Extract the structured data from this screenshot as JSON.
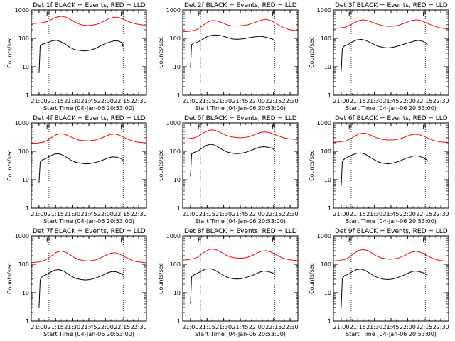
{
  "chart_data": {
    "type": "line",
    "ylabel": "Counts/sec",
    "xlabel": "Start Time (04-Jan-06 20:53:00)",
    "x_tick_labels": [
      "21:00",
      "21:15",
      "21:30",
      "21:45",
      "22:00",
      "22:15",
      "22:30"
    ],
    "x_ticks_min": [
      0,
      15,
      30,
      45,
      60,
      75,
      90
    ],
    "xlim_min": [
      -7,
      97
    ],
    "y_tick_labels": [
      "1",
      "10",
      "100",
      "1000"
    ],
    "y_ticks": [
      1,
      10,
      100,
      1000
    ],
    "ylim": [
      1,
      1000
    ],
    "log_y": true,
    "markers": {
      "label": "E",
      "x_min": [
        9,
        76
      ]
    },
    "colors": {
      "events": "#000000",
      "lld": "#ff0000"
    },
    "panels": [
      {
        "title": "Det 1f BLACK = Events, RED = LLD",
        "series": [
          {
            "key": "events",
            "x": [
              0,
              1,
              3,
              5,
              8,
              12,
              16,
              20,
              24,
              28,
              32,
              36,
              40,
              44,
              48,
              52,
              56,
              60,
              64,
              68,
              72,
              75,
              76
            ],
            "y": [
              6,
              55,
              62,
              65,
              72,
              82,
              85,
              75,
              62,
              48,
              40,
              38,
              36,
              37,
              40,
              46,
              56,
              66,
              74,
              82,
              80,
              70,
              50
            ]
          },
          {
            "key": "lld",
            "x": [
              -7,
              -2,
              4,
              8,
              12,
              16,
              20,
              24,
              28,
              32,
              36,
              40,
              44,
              48,
              52,
              56,
              60,
              64,
              68,
              72,
              76,
              80,
              84,
              88,
              92,
              97
            ],
            "y": [
              330,
              340,
              360,
              400,
              480,
              560,
              600,
              560,
              470,
              380,
              320,
              290,
              280,
              290,
              310,
              350,
              430,
              510,
              560,
              540,
              470,
              400,
              350,
              320,
              300,
              290
            ]
          }
        ]
      },
      {
        "title": "Det 2f BLACK = Events, RED = LLD",
        "series": [
          {
            "key": "events",
            "x": [
              0,
              1,
              3,
              6,
              10,
              14,
              18,
              22,
              26,
              30,
              34,
              38,
              42,
              46,
              50,
              54,
              58,
              62,
              66,
              70,
              74,
              76
            ],
            "y": [
              9,
              60,
              68,
              72,
              88,
              110,
              125,
              132,
              128,
              118,
              105,
              95,
              92,
              95,
              100,
              108,
              112,
              118,
              115,
              105,
              95,
              80
            ]
          },
          {
            "key": "lld",
            "x": [
              -7,
              -2,
              4,
              8,
              12,
              16,
              20,
              24,
              28,
              32,
              36,
              40,
              44,
              48,
              52,
              56,
              60,
              64,
              68,
              72,
              76,
              80,
              84,
              88,
              92,
              97
            ],
            "y": [
              170,
              175,
              190,
              230,
              300,
              380,
              430,
              410,
              360,
              310,
              280,
              270,
              275,
              285,
              300,
              340,
              390,
              440,
              470,
              430,
              360,
              290,
              240,
              210,
              195,
              185
            ]
          }
        ]
      },
      {
        "title": "Det 3f BLACK = Events, RED = LLD",
        "series": [
          {
            "key": "events",
            "x": [
              0,
              1,
              3,
              6,
              10,
              14,
              18,
              22,
              26,
              30,
              34,
              38,
              42,
              46,
              50,
              54,
              58,
              62,
              66,
              70,
              74,
              78
            ],
            "y": [
              7,
              45,
              55,
              60,
              75,
              88,
              92,
              85,
              72,
              60,
              52,
              48,
              46,
              48,
              52,
              58,
              65,
              72,
              80,
              85,
              78,
              60
            ]
          },
          {
            "key": "lld",
            "x": [
              -7,
              -2,
              4,
              8,
              12,
              16,
              20,
              24,
              28,
              32,
              36,
              40,
              44,
              48,
              52,
              56,
              60,
              64,
              68,
              72,
              76,
              80,
              84,
              88,
              92,
              97
            ],
            "y": [
              220,
              230,
              250,
              290,
              360,
              420,
              450,
              420,
              370,
              320,
              290,
              270,
              265,
              270,
              290,
              330,
              380,
              430,
              450,
              420,
              360,
              310,
              270,
              240,
              225,
              215
            ]
          }
        ]
      },
      {
        "title": "Det 4f BLACK = Events, RED = LLD",
        "series": [
          {
            "key": "events",
            "x": [
              0,
              1,
              3,
              6,
              10,
              14,
              18,
              22,
              26,
              30,
              34,
              38,
              42,
              46,
              50,
              54,
              58,
              62,
              66,
              70,
              74,
              76
            ],
            "y": [
              8,
              42,
              50,
              55,
              68,
              80,
              82,
              72,
              58,
              46,
              40,
              38,
              36,
              37,
              40,
              44,
              50,
              58,
              64,
              62,
              56,
              48
            ]
          },
          {
            "key": "lld",
            "x": [
              -7,
              -2,
              4,
              8,
              12,
              16,
              20,
              24,
              28,
              32,
              36,
              40,
              44,
              48,
              52,
              56,
              60,
              64,
              68,
              72,
              76,
              80,
              84,
              88,
              92,
              97
            ],
            "y": [
              190,
              195,
              210,
              250,
              320,
              390,
              420,
              390,
              330,
              280,
              250,
              240,
              235,
              240,
              255,
              290,
              340,
              390,
              410,
              380,
              320,
              270,
              235,
              215,
              205,
              195
            ]
          }
        ]
      },
      {
        "title": "Det 5f BLACK = Events, RED = LLD",
        "series": [
          {
            "key": "events",
            "x": [
              0,
              1,
              3,
              6,
              10,
              14,
              18,
              22,
              26,
              30,
              34,
              38,
              42,
              46,
              50,
              54,
              58,
              62,
              66,
              70,
              74,
              77
            ],
            "y": [
              13,
              80,
              90,
              100,
              125,
              160,
              178,
              165,
              135,
              108,
              92,
              85,
              82,
              85,
              92,
              105,
              122,
              138,
              145,
              140,
              128,
              100
            ]
          },
          {
            "key": "lld",
            "x": [
              -7,
              -2,
              4,
              8,
              12,
              16,
              20,
              24,
              28,
              32,
              36,
              40,
              44,
              48,
              52,
              56,
              60,
              64,
              68,
              72,
              76,
              80,
              84,
              88,
              92,
              97
            ],
            "y": [
              270,
              280,
              300,
              360,
              450,
              540,
              570,
              520,
              440,
              370,
              330,
              310,
              300,
              305,
              320,
              360,
              420,
              470,
              480,
              450,
              390,
              340,
              300,
              280,
              270,
              260
            ]
          }
        ]
      },
      {
        "title": "Det 6f BLACK = Events, RED = LLD",
        "series": [
          {
            "key": "events",
            "x": [
              0,
              1,
              3,
              6,
              10,
              14,
              18,
              22,
              26,
              30,
              34,
              38,
              42,
              46,
              50,
              54,
              58,
              62,
              66,
              70,
              74,
              78
            ],
            "y": [
              6,
              45,
              55,
              62,
              75,
              85,
              88,
              78,
              62,
              50,
              42,
              38,
              36,
              38,
              42,
              48,
              56,
              62,
              70,
              68,
              60,
              48
            ]
          },
          {
            "key": "lld",
            "x": [
              -7,
              -2,
              4,
              8,
              12,
              16,
              20,
              24,
              28,
              32,
              36,
              40,
              44,
              48,
              52,
              56,
              60,
              64,
              68,
              72,
              76,
              80,
              84,
              88,
              92,
              97
            ],
            "y": [
              210,
              215,
              230,
              270,
              340,
              410,
              440,
              410,
              350,
              300,
              270,
              255,
              250,
              255,
              270,
              300,
              350,
              390,
              400,
              370,
              320,
              270,
              240,
              220,
              210,
              205
            ]
          }
        ]
      },
      {
        "title": "Det 7f BLACK = Events, RED = LLD",
        "series": [
          {
            "key": "events",
            "x": [
              0,
              1,
              3,
              6,
              10,
              14,
              18,
              22,
              26,
              30,
              34,
              38,
              42,
              46,
              50,
              54,
              58,
              62,
              66,
              70,
              74,
              76
            ],
            "y": [
              3,
              28,
              38,
              42,
              52,
              62,
              65,
              58,
              46,
              36,
              31,
              29,
              28,
              29,
              32,
              36,
              42,
              50,
              56,
              54,
              48,
              42
            ]
          },
          {
            "key": "lld",
            "x": [
              -7,
              -2,
              4,
              8,
              12,
              16,
              20,
              24,
              28,
              32,
              36,
              40,
              44,
              48,
              52,
              56,
              60,
              64,
              68,
              72,
              76,
              80,
              84,
              88,
              92,
              97
            ],
            "y": [
              115,
              118,
              130,
              160,
              210,
              265,
              290,
              265,
              215,
              170,
              145,
              135,
              130,
              135,
              145,
              170,
              205,
              240,
              255,
              235,
              195,
              160,
              135,
              125,
              118,
              112
            ]
          }
        ]
      },
      {
        "title": "Det 8f BLACK = Events, RED = LLD",
        "series": [
          {
            "key": "events",
            "x": [
              0,
              1,
              3,
              6,
              10,
              14,
              18,
              22,
              26,
              30,
              34,
              38,
              42,
              46,
              50,
              54,
              58,
              62,
              66,
              70,
              74,
              76
            ],
            "y": [
              4,
              36,
              42,
              48,
              58,
              68,
              70,
              62,
              50,
              40,
              34,
              31,
              30,
              31,
              34,
              38,
              44,
              52,
              58,
              56,
              50,
              44
            ]
          },
          {
            "key": "lld",
            "x": [
              -7,
              -2,
              4,
              8,
              12,
              16,
              20,
              24,
              28,
              32,
              36,
              40,
              44,
              48,
              52,
              56,
              60,
              64,
              68,
              72,
              76,
              80,
              84,
              88,
              92,
              97
            ],
            "y": [
              140,
              145,
              160,
              195,
              260,
              320,
              345,
              315,
              260,
              210,
              180,
              168,
              162,
              166,
              178,
              205,
              245,
              285,
              300,
              275,
              230,
              190,
              162,
              148,
              140,
              135
            ]
          }
        ]
      },
      {
        "title": "Det 9f BLACK = Events, RED = LLD",
        "series": [
          {
            "key": "events",
            "x": [
              0,
              1,
              3,
              6,
              10,
              14,
              18,
              22,
              26,
              30,
              34,
              38,
              42,
              46,
              50,
              54,
              58,
              62,
              66,
              70,
              74,
              78
            ],
            "y": [
              3,
              32,
              40,
              44,
              55,
              65,
              68,
              60,
              48,
              38,
              33,
              30,
              29,
              30,
              33,
              38,
              44,
              52,
              58,
              56,
              50,
              42
            ]
          },
          {
            "key": "lld",
            "x": [
              -7,
              -2,
              4,
              8,
              12,
              16,
              20,
              24,
              28,
              32,
              36,
              40,
              44,
              48,
              52,
              56,
              60,
              64,
              68,
              72,
              76,
              80,
              84,
              88,
              92,
              97
            ],
            "y": [
              130,
              135,
              150,
              185,
              245,
              305,
              330,
              300,
              245,
              195,
              168,
              156,
              150,
              155,
              166,
              192,
              230,
              270,
              285,
              260,
              215,
              180,
              152,
              140,
              132,
              128
            ]
          }
        ]
      }
    ]
  }
}
